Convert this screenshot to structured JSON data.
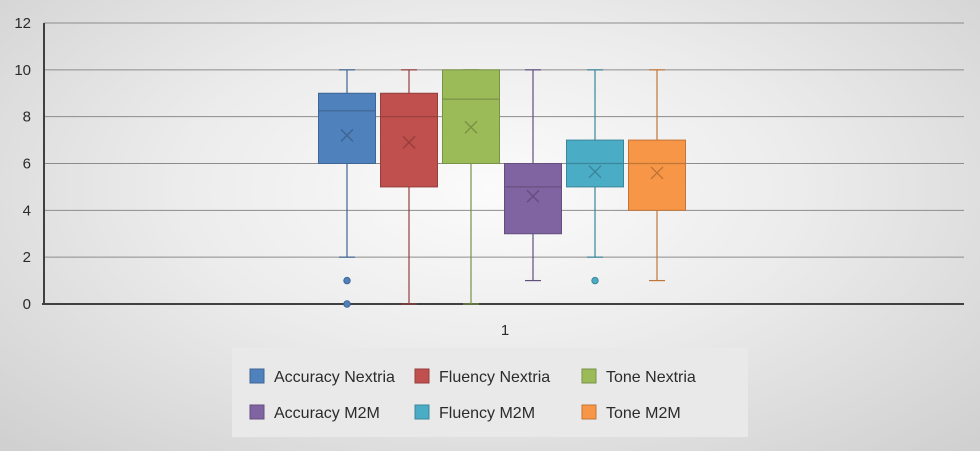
{
  "chart_data": {
    "type": "box",
    "title": "",
    "xlabel": "",
    "ylabel": "",
    "categories": [
      "1"
    ],
    "ylim": [
      0,
      12
    ],
    "yticks": [
      0,
      2,
      4,
      6,
      8,
      10,
      12
    ],
    "grid": true,
    "legend_position": "bottom",
    "series": [
      {
        "name": "Accuracy Nextria",
        "color": "#4f81bd",
        "min": 2,
        "q1": 6,
        "median": 8.25,
        "q3": 9,
        "max": 10,
        "mean": 7.2,
        "outliers": [
          1,
          0
        ]
      },
      {
        "name": "Fluency Nextria",
        "color": "#c0504d",
        "min": 0,
        "q1": 5,
        "median": 8,
        "q3": 9,
        "max": 10,
        "mean": 6.9,
        "outliers": []
      },
      {
        "name": "Tone Nextria",
        "color": "#9bbb59",
        "min": 0,
        "q1": 6,
        "median": 8.75,
        "q3": 10,
        "max": 10,
        "mean": 7.55,
        "outliers": []
      },
      {
        "name": "Accuracy M2M",
        "color": "#8064a2",
        "min": 1,
        "q1": 3,
        "median": 5,
        "q3": 6,
        "max": 10,
        "mean": 4.6,
        "outliers": []
      },
      {
        "name": "Fluency M2M",
        "color": "#4bacc6",
        "min": 2,
        "q1": 5,
        "median": 6,
        "q3": 7,
        "max": 10,
        "mean": 5.65,
        "outliers": [
          1
        ]
      },
      {
        "name": "Tone M2M",
        "color": "#f79646",
        "min": 1,
        "q1": 4,
        "median": 6,
        "q3": 7,
        "max": 10,
        "mean": 5.6,
        "outliers": []
      }
    ]
  }
}
